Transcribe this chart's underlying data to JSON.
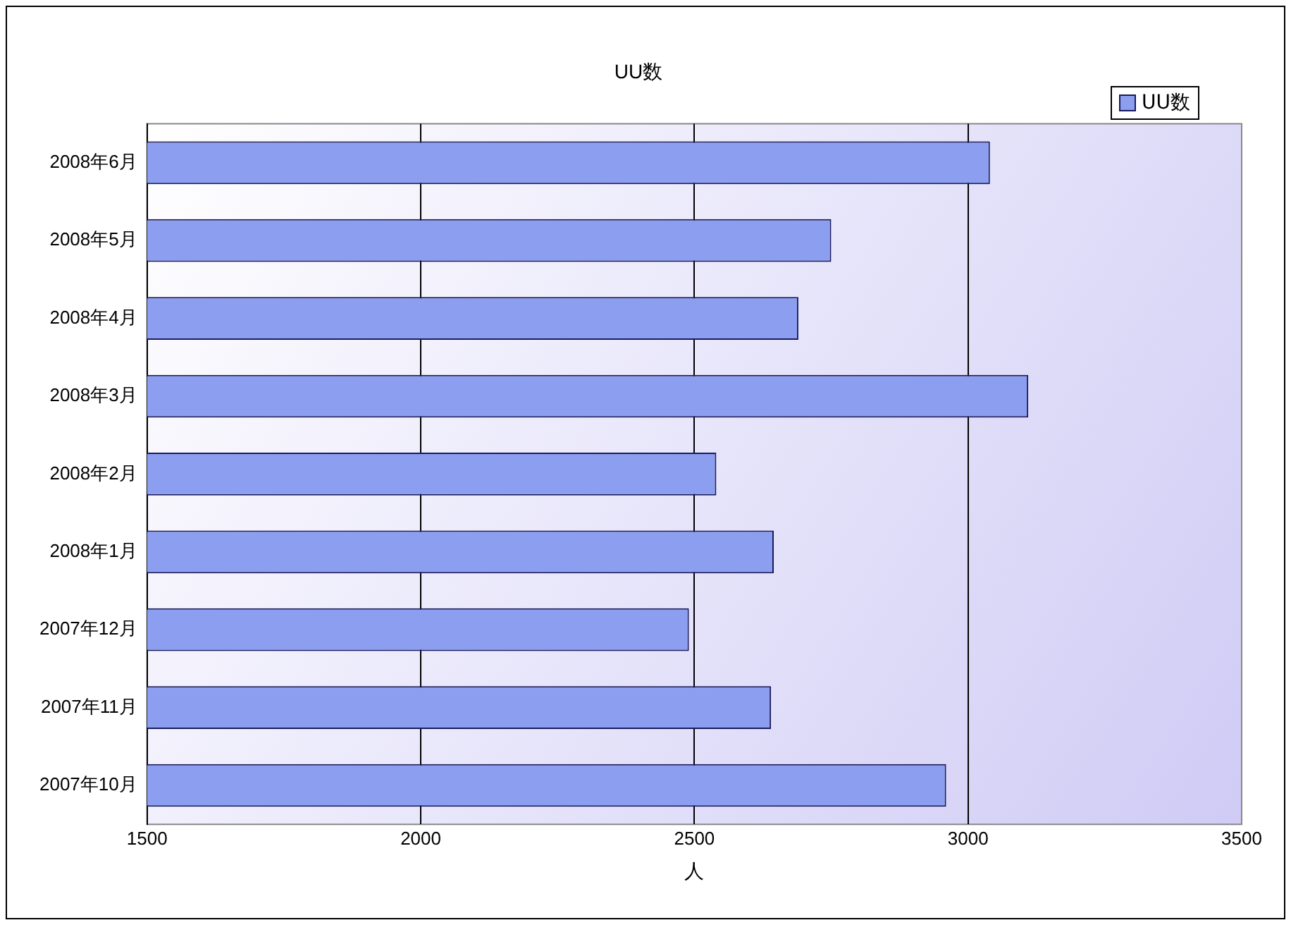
{
  "chart_data": {
    "type": "bar",
    "orientation": "horizontal",
    "title": "UU数",
    "xlabel": "人",
    "categories": [
      "2008年6月",
      "2008年5月",
      "2008年4月",
      "2008年3月",
      "2008年2月",
      "2008年1月",
      "2007年12月",
      "2007年11月",
      "2007年10月"
    ],
    "series": [
      {
        "name": "UU数",
        "color": "#8c9ef0",
        "values": [
          3040,
          2750,
          2690,
          3110,
          2540,
          2645,
          2490,
          2640,
          2960
        ]
      }
    ],
    "xlim": [
      1500,
      3500
    ],
    "xticks": [
      1500,
      2000,
      2500,
      3000,
      3500
    ],
    "grid": "x",
    "legend": "top right"
  }
}
